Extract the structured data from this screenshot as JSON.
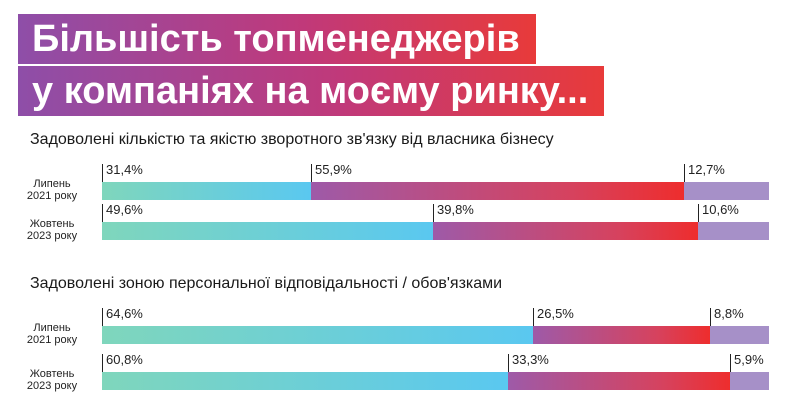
{
  "title": {
    "line1": "Більшість топменеджерів",
    "line2": "у компаніях на моєму ринку..."
  },
  "colors": {
    "positive": "#5ac8f0",
    "neutral": "#d6425e",
    "negative": "#a690c8"
  },
  "chart_data": {
    "type": "bar",
    "orientation": "horizontal-stacked-100",
    "groups": [
      {
        "title": "Задоволені кількістю та якістю зворотного зв'язку від власника бізнесу",
        "rows": [
          {
            "label_line1": "Липень",
            "label_line2": "2021 року",
            "values": [
              31.4,
              55.9,
              12.7
            ],
            "labels": [
              "31,4%",
              "55,9%",
              "12,7%"
            ]
          },
          {
            "label_line1": "Жовтень",
            "label_line2": "2023 року",
            "values": [
              49.6,
              39.8,
              10.6
            ],
            "labels": [
              "49,6%",
              "39,8%",
              "10,6%"
            ]
          }
        ]
      },
      {
        "title": "Задоволені зоною персональної відповідальності / обов'язками",
        "rows": [
          {
            "label_line1": "Липень",
            "label_line2": "2021 року",
            "values": [
              64.6,
              26.5,
              8.8
            ],
            "labels": [
              "64,6%",
              "26,5%",
              "8,8%"
            ]
          },
          {
            "label_line1": "Жовтень",
            "label_line2": "2023 року",
            "values": [
              60.8,
              33.3,
              5.9
            ],
            "labels": [
              "60,8%",
              "33,3%",
              "5,9%"
            ]
          }
        ]
      }
    ]
  }
}
